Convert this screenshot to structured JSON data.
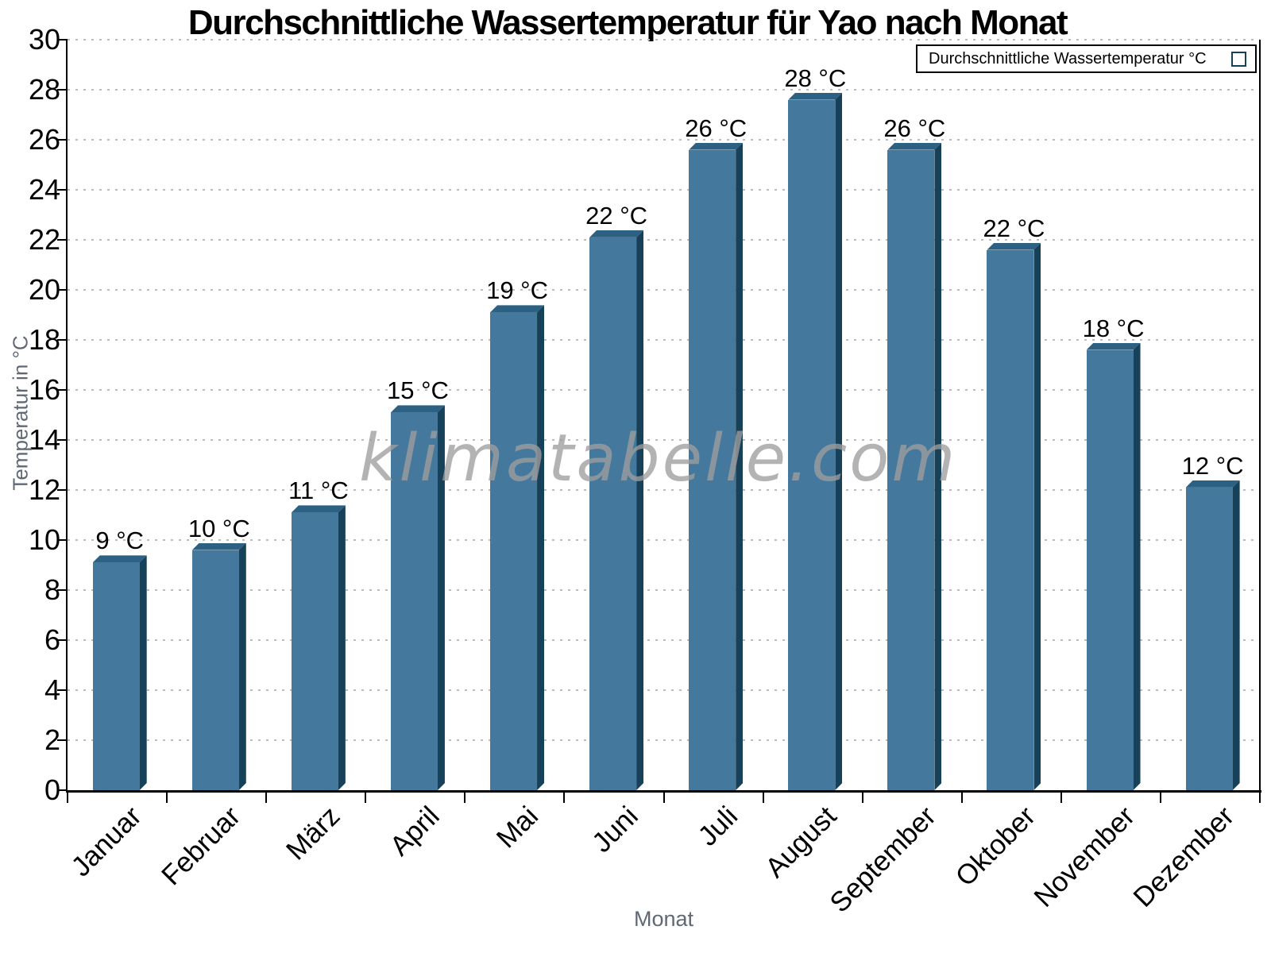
{
  "title": "Durchschnittliche Wassertemperatur für Yao nach Monat",
  "legend": {
    "label": "Durchschnittliche Wassertemperatur °C"
  },
  "watermark": {
    "text": "klimatabelle.com"
  },
  "axes": {
    "y_title": "Temperatur in °C",
    "x_title": "Monat",
    "y_ticks": [
      0,
      2,
      4,
      6,
      8,
      10,
      12,
      14,
      16,
      18,
      20,
      22,
      24,
      26,
      28,
      30
    ]
  },
  "chart_data": {
    "type": "bar",
    "title": "Durchschnittliche Wassertemperatur für Yao nach Monat",
    "categories": [
      "Januar",
      "Februar",
      "März",
      "April",
      "Mai",
      "Juni",
      "Juli",
      "August",
      "September",
      "Oktober",
      "November",
      "Dezember"
    ],
    "values": [
      9,
      10,
      11,
      15,
      19,
      22,
      26,
      28,
      26,
      22,
      18,
      12
    ],
    "plotted_values": [
      9.1,
      9.6,
      11.1,
      15.1,
      19.1,
      22.1,
      25.6,
      27.6,
      25.6,
      21.6,
      17.6,
      12.1
    ],
    "value_unit": "°C",
    "xlabel": "Monat",
    "ylabel": "Temperatur in °C",
    "ylim": [
      0,
      30
    ],
    "ytick_step": 2,
    "grid": "horizontal-dotted",
    "legend_position": "top-right",
    "legend_label": "Durchschnittliche Wassertemperatur °C",
    "colors": {
      "bar_face": "#44799d",
      "bar_top": "#2d6183",
      "bar_side": "#174159",
      "gridline": "#bcbcbc",
      "axis": "#000000",
      "axis_title_text": "#5f6873",
      "watermark_text": "#9e9e9e"
    }
  }
}
